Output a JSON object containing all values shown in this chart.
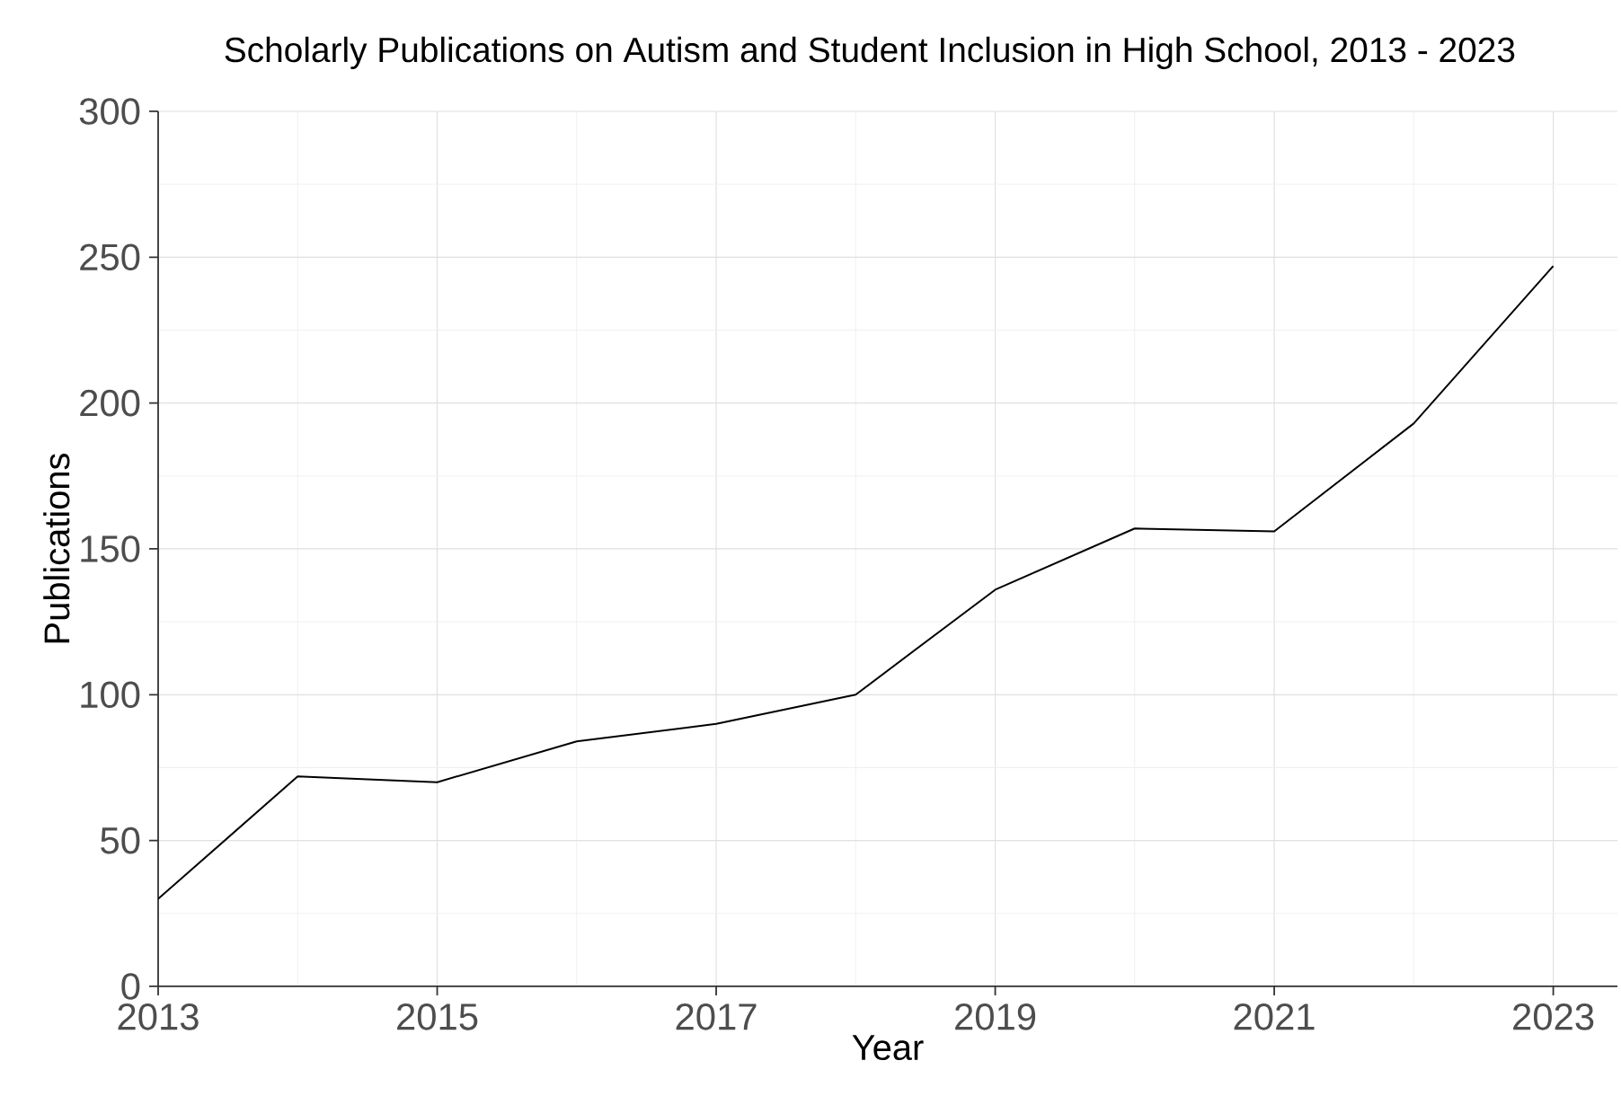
{
  "chart_data": {
    "type": "line",
    "title": "Scholarly Publications on Autism and Student Inclusion in High School, 2013 - 2023",
    "xlabel": "Year",
    "ylabel": "Publications",
    "x": [
      2013,
      2014,
      2015,
      2016,
      2017,
      2018,
      2019,
      2020,
      2021,
      2022,
      2023
    ],
    "series": [
      {
        "color": "#000000",
        "values": [
          30,
          72,
          70,
          84,
          90,
          100,
          136,
          157,
          156,
          193,
          247
        ]
      }
    ],
    "xlim": [
      2013,
      2023.46
    ],
    "ylim": [
      0,
      300
    ],
    "xticks": [
      2013,
      2015,
      2017,
      2019,
      2021,
      2023
    ],
    "yticks": [
      0,
      50,
      100,
      150,
      200,
      250,
      300
    ],
    "grid": true,
    "marker": "none",
    "line_style": "solid"
  }
}
